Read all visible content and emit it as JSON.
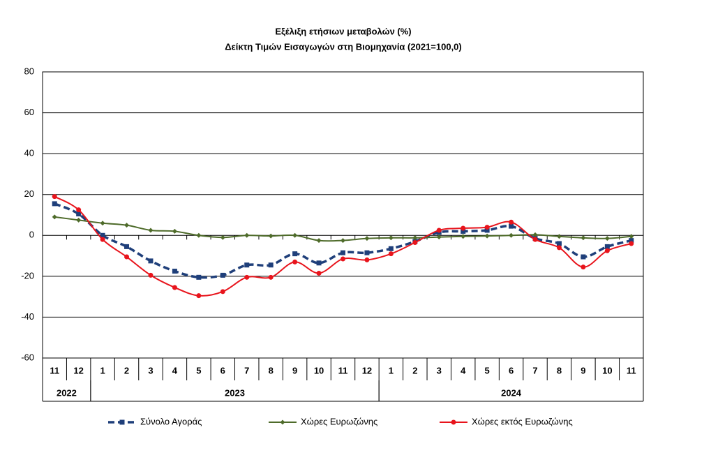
{
  "chart_data": {
    "type": "line",
    "title": "Εξέλιξη ετήσιων μεταβολών (%)",
    "subtitle": "Δείκτη Τιμών Εισαγωγών στη Βιομηχανία (2021=100,0)",
    "categories": [
      "11",
      "12",
      "1",
      "2",
      "3",
      "4",
      "5",
      "6",
      "7",
      "8",
      "9",
      "10",
      "11",
      "12",
      "1",
      "2",
      "3",
      "4",
      "5",
      "6",
      "7",
      "8",
      "9",
      "10",
      "11"
    ],
    "year_groups": [
      {
        "label": "2022",
        "count": 2
      },
      {
        "label": "2023",
        "count": 12
      },
      {
        "label": "2024",
        "count": 11
      }
    ],
    "series": [
      {
        "name": "Σύνολο Αγοράς",
        "color": "#1f3f7a",
        "marker": "square",
        "dashed": true,
        "values": [
          15.5,
          10.5,
          0,
          -5.5,
          -12.5,
          -17.5,
          -20.5,
          -19.5,
          -14.5,
          -14.5,
          -9,
          -13.5,
          -8.5,
          -8.5,
          -6.5,
          -3,
          1.5,
          2,
          2.5,
          4.5,
          -1.5,
          -4,
          -10.5,
          -5.5,
          -2.5
        ]
      },
      {
        "name": "Χώρες Ευρωζώνης",
        "color": "#4e6b2a",
        "marker": "diamond",
        "dashed": false,
        "values": [
          9,
          7.5,
          6,
          5,
          2.5,
          2,
          0,
          -1,
          0,
          -0.3,
          0,
          -2.5,
          -2.5,
          -1.5,
          -1.2,
          -1.2,
          -0.8,
          -0.5,
          -0.3,
          0,
          0.3,
          -0.5,
          -1.2,
          -1.5,
          -0.5
        ]
      },
      {
        "name": "Χώρες εκτός Ευρωζώνης",
        "color": "#e8141c",
        "marker": "circle",
        "dashed": false,
        "values": [
          19,
          12.5,
          -2,
          -10.5,
          -19.5,
          -25.5,
          -29.5,
          -27.5,
          -20.5,
          -20.5,
          -13,
          -18.5,
          -11.5,
          -12,
          -9,
          -3.5,
          2.5,
          3.5,
          4,
          6.5,
          -2,
          -6,
          -15.5,
          -7.5,
          -4
        ]
      }
    ],
    "ylim": [
      -60,
      80
    ],
    "yticks": [
      -60,
      -40,
      -20,
      0,
      20,
      40,
      60,
      80
    ],
    "grid": true
  }
}
